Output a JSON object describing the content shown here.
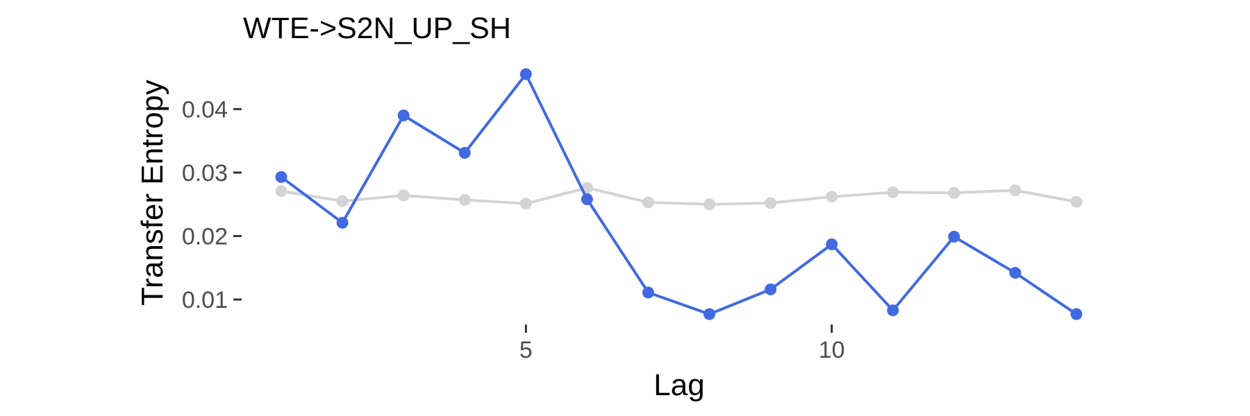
{
  "chart_data": {
    "type": "line",
    "title": "WTE->S2N_UP_SH",
    "xlabel": "Lag",
    "ylabel": "Transfer Entropy",
    "x": [
      1,
      2,
      3,
      4,
      5,
      6,
      7,
      8,
      9,
      10,
      11,
      12,
      13,
      14
    ],
    "xlim": [
      1,
      14
    ],
    "ylim": [
      0.01,
      0.0455
    ],
    "xticks": [
      5,
      10
    ],
    "xtick_labels": [
      "5",
      "10"
    ],
    "yticks": [
      0.01,
      0.02,
      0.03,
      0.04
    ],
    "ytick_labels": [
      "0.01",
      "0.02",
      "0.03",
      "0.04"
    ],
    "grid": false,
    "legend": "none",
    "series": [
      {
        "color": "#d3d3d3",
        "values": [
          0.0271,
          0.0255,
          0.0264,
          0.0257,
          0.0251,
          0.0276,
          0.0253,
          0.025,
          0.0252,
          0.0262,
          0.0269,
          0.0268,
          0.0272,
          0.0254
        ]
      },
      {
        "color": "#4169e1",
        "values": [
          0.0293,
          0.0221,
          0.039,
          0.0331,
          0.0455,
          0.0258,
          0.0111,
          0.0077,
          0.0116,
          0.0187,
          0.0083,
          0.0199,
          0.0142,
          0.0077
        ]
      }
    ]
  }
}
